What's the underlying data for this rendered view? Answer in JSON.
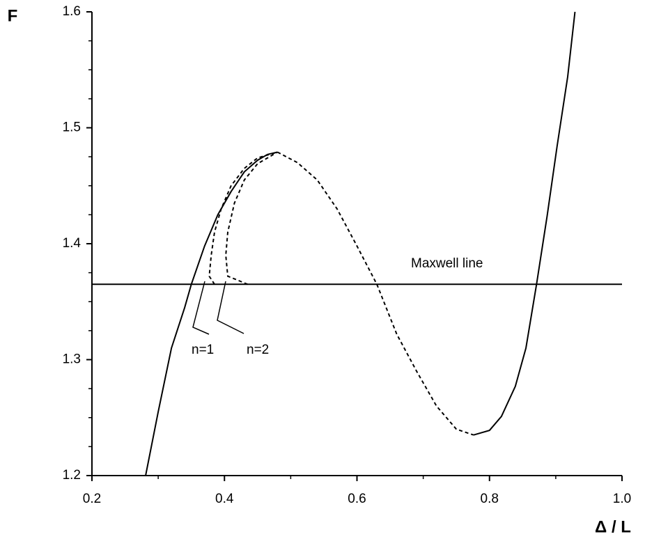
{
  "chart_data": {
    "type": "line",
    "y_label": "F",
    "x_label": "Δ / L",
    "xlim": [
      0.2,
      1.0
    ],
    "ylim": [
      1.2,
      1.6
    ],
    "xticks": [
      0.2,
      0.4,
      0.6,
      0.8,
      {
        "value": 1.0,
        "label": "1.0"
      }
    ],
    "yticks": [
      1.2,
      1.3,
      1.4,
      1.5,
      1.6
    ],
    "xminorticks": [
      0.3,
      0.5,
      0.7,
      0.9
    ],
    "yminorticks": [
      1.225,
      1.25,
      1.275,
      1.325,
      1.35,
      1.375,
      1.425,
      1.45,
      1.475,
      1.525,
      1.55,
      1.575
    ],
    "annotations": [
      "Maxwell line",
      "n=1",
      "n=2"
    ],
    "series": [
      {
        "color": "#000000",
        "dashed": false,
        "x": [
          0.281,
          0.3,
          0.32,
          0.34,
          0.35,
          0.37,
          0.39,
          0.41,
          0.43,
          0.45,
          0.465,
          0.48
        ],
        "values": [
          1.2,
          1.255,
          1.31,
          1.345,
          1.365,
          1.398,
          1.425,
          1.445,
          1.462,
          1.472,
          1.477,
          1.479
        ]
      },
      {
        "color": "#000000",
        "dashed": true,
        "x": [
          0.48,
          0.51,
          0.54,
          0.57,
          0.6,
          0.63,
          0.66,
          0.69,
          0.72,
          0.75,
          0.776
        ],
        "values": [
          1.479,
          1.47,
          1.455,
          1.43,
          1.398,
          1.365,
          1.322,
          1.29,
          1.26,
          1.24,
          1.235
        ]
      },
      {
        "color": "#000000",
        "dashed": false,
        "x": [
          0.776,
          0.8,
          0.818,
          0.839,
          0.855,
          0.871,
          0.887,
          0.902,
          0.918,
          0.929
        ],
        "values": [
          1.235,
          1.239,
          1.251,
          1.277,
          1.31,
          1.365,
          1.424,
          1.484,
          1.544,
          1.6
        ]
      },
      {
        "color": "#000000",
        "dashed": true,
        "x": [
          0.385,
          0.377,
          0.38,
          0.385,
          0.395,
          0.41,
          0.43,
          0.45,
          0.48
        ],
        "values": [
          1.365,
          1.372,
          1.39,
          1.41,
          1.43,
          1.45,
          1.465,
          1.474,
          1.479
        ]
      },
      {
        "color": "#000000",
        "dashed": true,
        "x": [
          0.435,
          0.405,
          0.402,
          0.405,
          0.415,
          0.43,
          0.45,
          0.48
        ],
        "values": [
          1.365,
          1.372,
          1.39,
          1.41,
          1.435,
          1.455,
          1.469,
          1.479
        ]
      },
      {
        "color": "#000000",
        "dashed": false,
        "x": [
          0.2,
          1.0
        ],
        "values": [
          1.365,
          1.365
        ]
      }
    ]
  }
}
